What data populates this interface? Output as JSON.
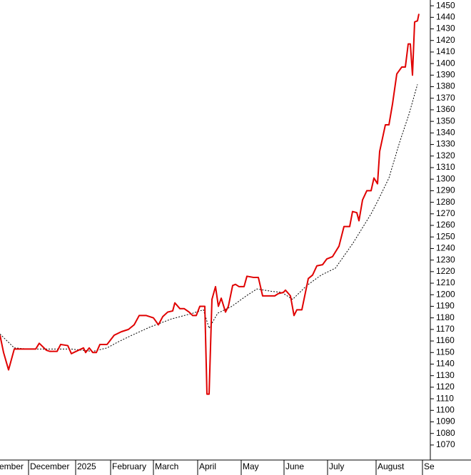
{
  "chart_data": {
    "type": "line",
    "xlim": [
      0,
      603
    ],
    "xticks": [
      {
        "value": -3,
        "label": "ember"
      },
      {
        "value": 40,
        "label": "December"
      },
      {
        "value": 106,
        "label": "2025"
      },
      {
        "value": 155,
        "label": "February"
      },
      {
        "value": 215,
        "label": "March"
      },
      {
        "value": 277,
        "label": "April"
      },
      {
        "value": 338,
        "label": "May"
      },
      {
        "value": 398,
        "label": "June"
      },
      {
        "value": 459,
        "label": "July"
      },
      {
        "value": 527,
        "label": "August"
      },
      {
        "value": 592,
        "label": "Se"
      }
    ],
    "ylim": [
      1057,
      1455
    ],
    "yticks": [
      1070,
      1080,
      1090,
      1100,
      1110,
      1120,
      1130,
      1140,
      1150,
      1160,
      1170,
      1180,
      1190,
      1200,
      1210,
      1220,
      1230,
      1240,
      1250,
      1260,
      1270,
      1280,
      1290,
      1300,
      1310,
      1320,
      1330,
      1340,
      1350,
      1360,
      1370,
      1380,
      1390,
      1400,
      1410,
      1420,
      1430,
      1440,
      1450
    ],
    "series": [
      {
        "color": "#e00000",
        "dashed": false,
        "x": [
          0,
          5,
          12,
          20,
          50,
          55,
          65,
          70,
          80,
          85,
          95,
          100,
          110,
          117,
          120,
          125,
          130,
          135,
          140,
          150,
          155,
          160,
          170,
          180,
          188,
          195,
          205,
          215,
          222,
          228,
          235,
          242,
          245,
          252,
          258,
          265,
          270,
          275,
          280,
          287,
          290,
          293,
          297,
          302,
          306,
          310,
          316,
          320,
          326,
          330,
          335,
          342,
          346,
          355,
          362,
          368,
          385,
          390,
          397,
          400,
          407,
          412,
          416,
          423,
          428,
          432,
          438,
          444,
          452,
          458,
          466,
          475,
          482,
          490,
          494,
          500,
          503,
          508,
          514,
          520,
          524,
          529,
          532,
          540,
          545,
          550,
          556,
          563,
          568,
          572,
          575,
          578,
          581,
          585,
          587
        ],
        "values": [
          1165,
          1150,
          1135,
          1153,
          1153,
          1158,
          1152,
          1151,
          1151,
          1157,
          1156,
          1149,
          1152,
          1154,
          1150,
          1154,
          1150,
          1150,
          1157,
          1157,
          1161,
          1165,
          1168,
          1170,
          1174,
          1182,
          1182,
          1180,
          1174,
          1181,
          1185,
          1186,
          1193,
          1188,
          1188,
          1185,
          1182,
          1182,
          1190,
          1190,
          1114,
          1114,
          1196,
          1207,
          1190,
          1197,
          1185,
          1190,
          1208,
          1209,
          1207,
          1207,
          1216,
          1215,
          1215,
          1199,
          1199,
          1201,
          1202,
          1204,
          1199,
          1182,
          1187,
          1187,
          1202,
          1214,
          1217,
          1225,
          1226,
          1231,
          1233,
          1242,
          1259,
          1259,
          1272,
          1271,
          1264,
          1282,
          1290,
          1290,
          1301,
          1296,
          1324,
          1347,
          1347,
          1365,
          1391,
          1397,
          1397,
          1417,
          1417,
          1390,
          1436,
          1437,
          1443
        ]
      },
      {
        "color": "#000000",
        "dashed": true,
        "x": [
          0,
          20,
          40,
          80,
          100,
          130,
          150,
          165,
          185,
          210,
          240,
          270,
          285,
          293,
          305,
          325,
          345,
          360,
          380,
          395,
          410,
          430,
          450,
          470,
          495,
          520,
          530,
          545,
          560,
          573,
          585
        ],
        "values": [
          1166,
          1154,
          1153,
          1153,
          1153,
          1151,
          1154,
          1159,
          1165,
          1172,
          1179,
          1184,
          1187,
          1171,
          1184,
          1190,
          1199,
          1205,
          1203,
          1202,
          1196,
          1208,
          1217,
          1223,
          1245,
          1270,
          1282,
          1301,
          1332,
          1356,
          1382
        ]
      }
    ]
  }
}
